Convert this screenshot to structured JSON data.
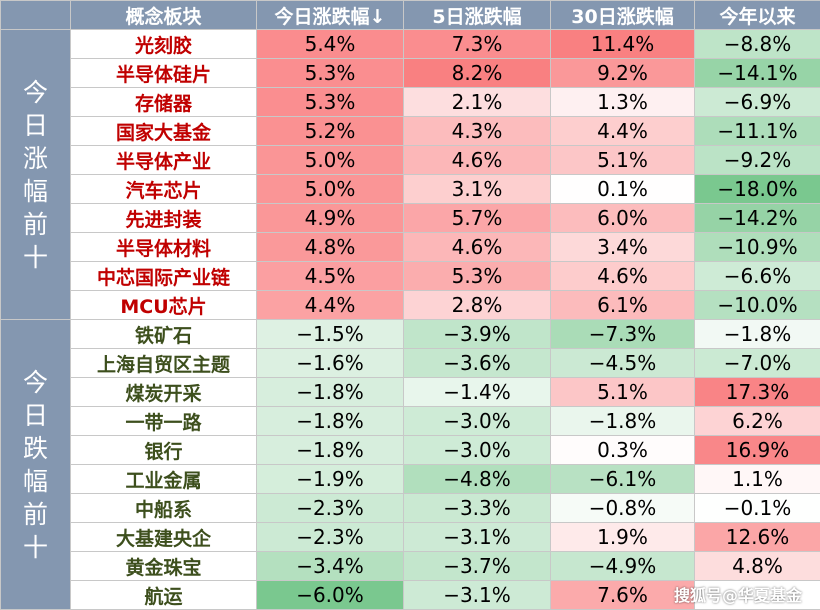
{
  "chart_data": {
    "type": "table",
    "columns": [
      "概念板块",
      "今日涨跌幅↓",
      "5日涨跌幅",
      "30日涨跌幅",
      "今年以来"
    ],
    "colors": {
      "header": "#8497b0",
      "positive": "#f8696b",
      "negative": "#63be7b",
      "up_name": "#c00000",
      "down_name": "#3d4f1d"
    },
    "groups": [
      {
        "label": "今日涨幅前十",
        "direction": "up",
        "rows": [
          {
            "name": "光刻胶",
            "values": [
              5.4,
              7.3,
              11.4,
              -8.8
            ],
            "display": [
              "5.4%",
              "7.3%",
              "11.4%",
              "−8.8%"
            ]
          },
          {
            "name": "半导体硅片",
            "values": [
              5.3,
              8.2,
              9.2,
              -14.1
            ],
            "display": [
              "5.3%",
              "8.2%",
              "9.2%",
              "−14.1%"
            ]
          },
          {
            "name": "存储器",
            "values": [
              5.3,
              2.1,
              1.3,
              -6.9
            ],
            "display": [
              "5.3%",
              "2.1%",
              "1.3%",
              "−6.9%"
            ]
          },
          {
            "name": "国家大基金",
            "values": [
              5.2,
              4.3,
              4.4,
              -11.1
            ],
            "display": [
              "5.2%",
              "4.3%",
              "4.4%",
              "−11.1%"
            ]
          },
          {
            "name": "半导体产业",
            "values": [
              5.0,
              4.6,
              5.1,
              -9.2
            ],
            "display": [
              "5.0%",
              "4.6%",
              "5.1%",
              "−9.2%"
            ]
          },
          {
            "name": "汽车芯片",
            "values": [
              5.0,
              3.1,
              0.1,
              -18.0
            ],
            "display": [
              "5.0%",
              "3.1%",
              "0.1%",
              "−18.0%"
            ]
          },
          {
            "name": "先进封装",
            "values": [
              4.9,
              5.7,
              6.0,
              -14.2
            ],
            "display": [
              "4.9%",
              "5.7%",
              "6.0%",
              "−14.2%"
            ]
          },
          {
            "name": "半导体材料",
            "values": [
              4.8,
              4.6,
              3.4,
              -10.9
            ],
            "display": [
              "4.8%",
              "4.6%",
              "3.4%",
              "−10.9%"
            ]
          },
          {
            "name": "中芯国际产业链",
            "values": [
              4.5,
              5.3,
              4.6,
              -6.6
            ],
            "display": [
              "4.5%",
              "5.3%",
              "4.6%",
              "−6.6%"
            ]
          },
          {
            "name": "MCU芯片",
            "values": [
              4.4,
              2.8,
              6.1,
              -10.0
            ],
            "display": [
              "4.4%",
              "2.8%",
              "6.1%",
              "−10.0%"
            ]
          }
        ]
      },
      {
        "label": "今日跌幅前十",
        "direction": "down",
        "rows": [
          {
            "name": "铁矿石",
            "values": [
              -1.5,
              -3.9,
              -7.3,
              -1.8
            ],
            "display": [
              "−1.5%",
              "−3.9%",
              "−7.3%",
              "−1.8%"
            ]
          },
          {
            "name": "上海自贸区主题",
            "values": [
              -1.6,
              -3.6,
              -4.5,
              -7.0
            ],
            "display": [
              "−1.6%",
              "−3.6%",
              "−4.5%",
              "−7.0%"
            ]
          },
          {
            "name": "煤炭开采",
            "values": [
              -1.8,
              -1.4,
              5.1,
              17.3
            ],
            "display": [
              "−1.8%",
              "−1.4%",
              "5.1%",
              "17.3%"
            ]
          },
          {
            "name": "一带一路",
            "values": [
              -1.8,
              -3.0,
              -1.8,
              6.2
            ],
            "display": [
              "−1.8%",
              "−3.0%",
              "−1.8%",
              "6.2%"
            ]
          },
          {
            "name": "银行",
            "values": [
              -1.8,
              -3.0,
              0.3,
              16.9
            ],
            "display": [
              "−1.8%",
              "−3.0%",
              "0.3%",
              "16.9%"
            ]
          },
          {
            "name": "工业金属",
            "values": [
              -1.9,
              -4.8,
              -6.1,
              1.1
            ],
            "display": [
              "−1.9%",
              "−4.8%",
              "−6.1%",
              "1.1%"
            ]
          },
          {
            "name": "中船系",
            "values": [
              -2.3,
              -3.3,
              -0.8,
              -0.1
            ],
            "display": [
              "−2.3%",
              "−3.3%",
              "−0.8%",
              "−0.1%"
            ]
          },
          {
            "name": "大基建央企",
            "values": [
              -2.3,
              -3.1,
              1.9,
              12.6
            ],
            "display": [
              "−2.3%",
              "−3.1%",
              "1.9%",
              "12.6%"
            ]
          },
          {
            "name": "黄金珠宝",
            "values": [
              -3.4,
              -3.7,
              -4.9,
              4.8
            ],
            "display": [
              "−3.4%",
              "−3.7%",
              "−4.9%",
              "4.8%"
            ]
          },
          {
            "name": "航运",
            "values": [
              -6.0,
              -3.1,
              7.6,
              null
            ],
            "display": [
              "−6.0%",
              "−3.1%",
              "7.6%",
              ""
            ]
          }
        ]
      }
    ]
  },
  "watermark": "搜狐号@华夏基金"
}
